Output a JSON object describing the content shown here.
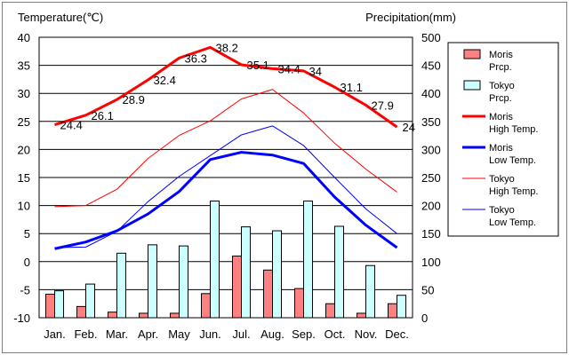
{
  "chart_data": {
    "type": "bar+line",
    "y_left_title": "Temperature(℃)",
    "y_right_title": "Precipitation(mm)",
    "categories": [
      "Jan.",
      "Feb.",
      "Mar.",
      "Apr.",
      "May",
      "Jun.",
      "Jul.",
      "Aug.",
      "Sep.",
      "Oct.",
      "Nov.",
      "Dec."
    ],
    "y_left_range": [
      -10,
      40
    ],
    "y_left_ticks": [
      -10,
      -5,
      0,
      5,
      10,
      15,
      20,
      25,
      30,
      35,
      40
    ],
    "y_right_range": [
      0,
      500
    ],
    "y_right_ticks": [
      0,
      50,
      100,
      150,
      200,
      250,
      300,
      350,
      400,
      450,
      500
    ],
    "grid": true,
    "legend_position": "right",
    "bar_series": [
      {
        "name": "Moris Prcp.",
        "legend_lines": [
          "Moris",
          "Prcp."
        ],
        "color": "#ff8080",
        "values": [
          42,
          20,
          10,
          8,
          8,
          43,
          110,
          85,
          52,
          25,
          8,
          25
        ]
      },
      {
        "name": "Tokyo Prcp.",
        "legend_lines": [
          "Tokyo",
          "Prcp."
        ],
        "color": "#ccffff",
        "values": [
          48,
          60,
          115,
          130,
          128,
          208,
          162,
          155,
          208,
          163,
          93,
          40
        ]
      }
    ],
    "line_series": [
      {
        "name": "Moris High Temp.",
        "legend_lines": [
          "Moris",
          "High Temp."
        ],
        "color": "#ff0000",
        "width": 3,
        "values": [
          24.4,
          26.1,
          28.9,
          32.4,
          36.3,
          38.2,
          35.1,
          34.4,
          34,
          31.1,
          27.9,
          24
        ],
        "labels": [
          "24.4",
          "26.1",
          "28.9",
          "32.4",
          "36.3",
          "38.2",
          "35.1",
          "34.4",
          "34",
          "31.1",
          "27.9",
          "24"
        ]
      },
      {
        "name": "Moris Low Temp.",
        "legend_lines": [
          "Moris",
          "Low Temp."
        ],
        "color": "#0000ff",
        "width": 3,
        "values": [
          2.3,
          3.5,
          5.5,
          8.5,
          12.5,
          18.2,
          19.5,
          19,
          17.5,
          11.5,
          6.5,
          2.5
        ]
      },
      {
        "name": "Tokyo High Temp.",
        "legend_lines": [
          "Tokyo",
          "High Temp."
        ],
        "color": "#ff0000",
        "width": 1,
        "values": [
          9.8,
          10,
          12.9,
          18.4,
          22.5,
          25.1,
          29,
          30.7,
          26.5,
          21.1,
          16.5,
          12.4
        ]
      },
      {
        "name": "Tokyo Low Temp.",
        "legend_lines": [
          "Tokyo",
          "Low Temp."
        ],
        "color": "#0000ff",
        "width": 1,
        "values": [
          2.5,
          2.6,
          5.4,
          10.7,
          15.2,
          18.9,
          22.6,
          24.2,
          20.7,
          15,
          9.4,
          5
        ]
      }
    ]
  }
}
